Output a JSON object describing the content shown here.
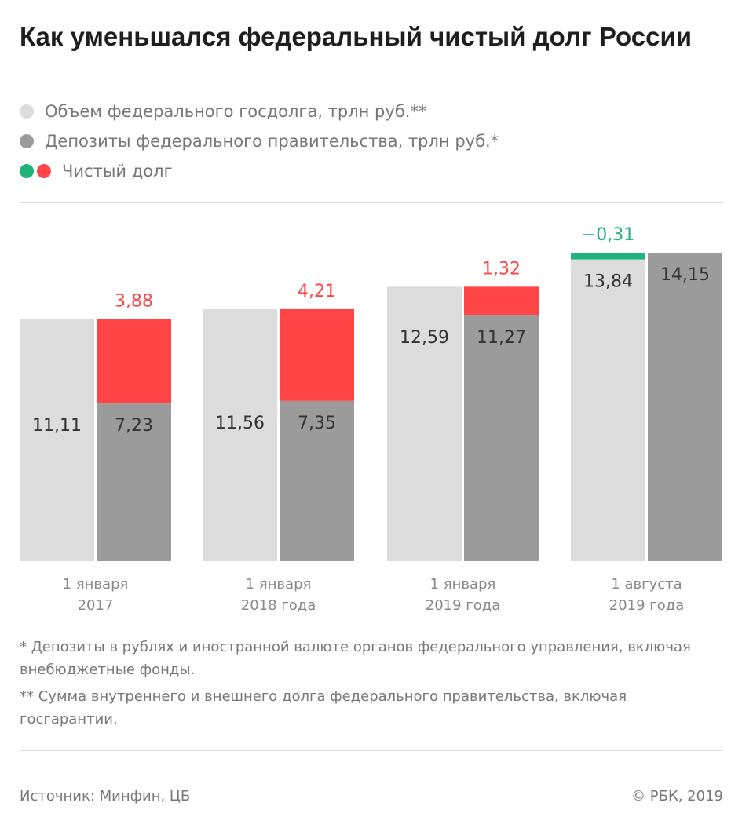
{
  "chart_data": {
    "type": "bar",
    "title": "Как уменьшался федеральный чистый долг России",
    "categories": [
      "1 января\n2017",
      "1 января\n2018 года",
      "1 января\n2019 года",
      "1 августа\n2019 года"
    ],
    "series": [
      {
        "name": "Объем федерального госдолга, трлн руб.**",
        "color": "#dcdcdc",
        "values": [
          11.11,
          11.56,
          12.59,
          13.84
        ],
        "value_labels": [
          "11,11",
          "11,56",
          "12,59",
          "13,84"
        ]
      },
      {
        "name": "Депозиты федерального правительства, трлн руб.*",
        "color": "#9b9b9b",
        "values": [
          7.23,
          7.35,
          11.27,
          14.15
        ],
        "value_labels": [
          "7,23",
          "7,35",
          "11,27",
          "14,15"
        ]
      },
      {
        "name": "Чистый долг",
        "color": "#ff4545",
        "negative_color": "#1db37a",
        "values": [
          3.88,
          4.21,
          1.32,
          -0.31
        ],
        "value_labels": [
          "3,88",
          "4,21",
          "1,32",
          "−0,31"
        ]
      }
    ],
    "notes": [
      "* Депозиты в рублях и иностранной валюте органов федерального управления, включая внебюджетные фонды.",
      "** Сумма внутреннего и внешнего долга федерального правительства, включая госгарантии."
    ],
    "source": "Источник: Минфин, ЦБ",
    "credit": "© РБК, 2019"
  }
}
